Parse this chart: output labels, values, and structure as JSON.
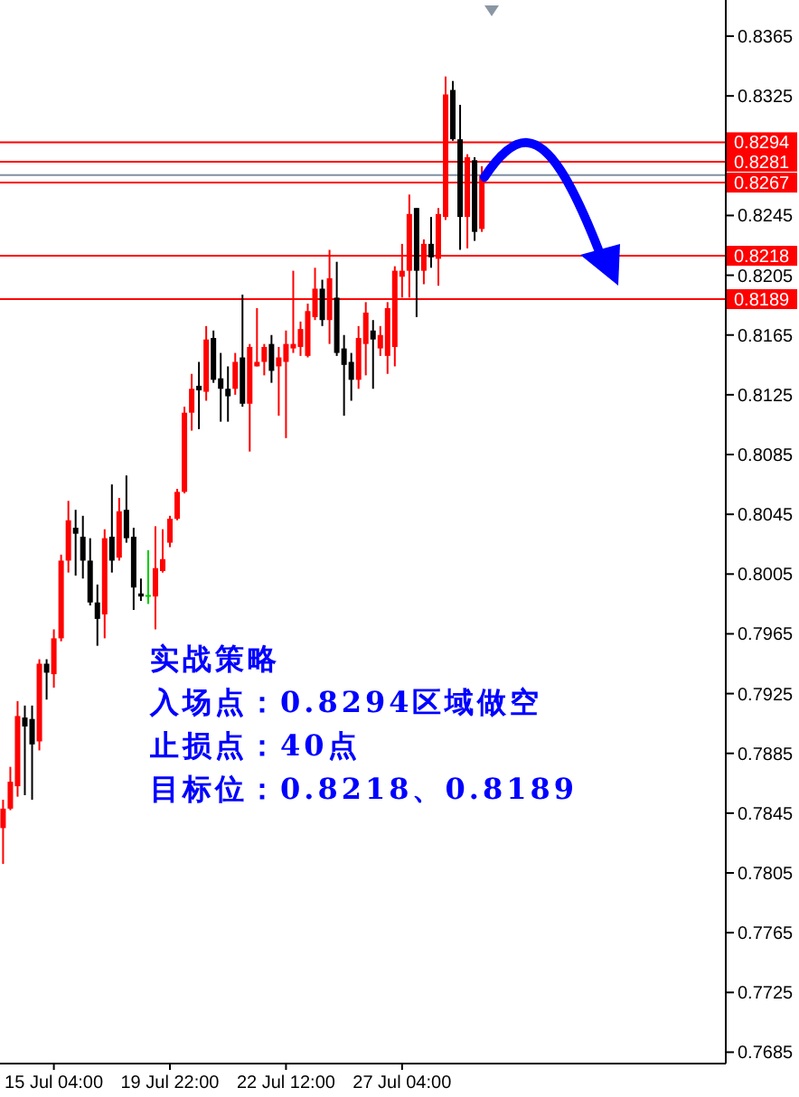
{
  "chart_data": {
    "type": "candlestick",
    "categories": [
      null,
      null,
      null,
      null,
      null,
      null,
      null,
      "15 Jul 04:00",
      null,
      null,
      null,
      null,
      null,
      null,
      null,
      null,
      null,
      null,
      null,
      null,
      null,
      null,
      null,
      "19 Jul 22:00",
      null,
      null,
      null,
      null,
      null,
      null,
      null,
      null,
      null,
      null,
      null,
      null,
      null,
      null,
      null,
      "22 Jul 12:00",
      null,
      null,
      null,
      null,
      null,
      null,
      null,
      null,
      null,
      null,
      null,
      null,
      null,
      null,
      null,
      "27 Jul 04:00",
      null,
      null,
      null,
      null,
      null,
      null,
      null,
      null,
      null,
      null,
      null,
      null,
      null,
      null,
      null,
      null,
      null,
      null,
      null,
      null,
      null,
      null,
      null,
      null,
      null,
      null,
      null,
      null,
      null,
      null,
      null,
      null,
      null,
      null,
      null,
      null,
      null,
      null,
      null,
      null,
      null,
      null,
      null,
      null
    ],
    "ohlc": [
      [
        0.7835,
        0.7854,
        0.7811,
        0.7848
      ],
      [
        0.7848,
        0.7876,
        0.7847,
        0.7866
      ],
      [
        0.7863,
        0.792,
        0.7856,
        0.791
      ],
      [
        0.7909,
        0.7917,
        0.7857,
        0.7903
      ],
      [
        0.7908,
        0.7917,
        0.7854,
        0.7891
      ],
      [
        0.7893,
        0.7948,
        0.7887,
        0.7945
      ],
      [
        0.7945,
        0.7948,
        0.7921,
        0.7939
      ],
      [
        0.7938,
        0.7968,
        0.7929,
        0.7962
      ],
      [
        0.7962,
        0.8018,
        0.796,
        0.8014
      ],
      [
        0.8014,
        0.8054,
        0.8006,
        0.8041
      ],
      [
        0.8036,
        0.8048,
        0.8004,
        0.8032
      ],
      [
        0.803,
        0.8044,
        0.8002,
        0.8014
      ],
      [
        0.8014,
        0.8029,
        0.7984,
        0.7986
      ],
      [
        0.7986,
        0.7998,
        0.7957,
        0.7975
      ],
      [
        0.7978,
        0.8035,
        0.7962,
        0.8029
      ],
      [
        0.803,
        0.8065,
        0.8006,
        0.8014
      ],
      [
        0.8016,
        0.8056,
        0.8014,
        0.8047
      ],
      [
        0.8048,
        0.8071,
        0.8026,
        0.8029
      ],
      [
        0.803,
        0.8036,
        0.7981,
        0.7996
      ],
      [
        0.7992,
        0.8002,
        0.7987,
        0.799
      ],
      [
        0.7991,
        0.8021,
        0.7985,
        0.7991
      ],
      [
        0.799,
        0.8037,
        0.7968,
        0.8009
      ],
      [
        0.8007,
        0.8035,
        0.8006,
        0.8015
      ],
      [
        0.8026,
        0.8044,
        0.8023,
        0.8042
      ],
      [
        0.8042,
        0.8062,
        0.8041,
        0.806
      ],
      [
        0.806,
        0.8117,
        0.8059,
        0.8113
      ],
      [
        0.8113,
        0.8139,
        0.8101,
        0.8129
      ],
      [
        0.8131,
        0.8147,
        0.8102,
        0.8128
      ],
      [
        0.8127,
        0.8171,
        0.8121,
        0.8162
      ],
      [
        0.8163,
        0.8168,
        0.8133,
        0.8135
      ],
      [
        0.8136,
        0.8153,
        0.8107,
        0.8129
      ],
      [
        0.8129,
        0.8144,
        0.8107,
        0.8124
      ],
      [
        0.8129,
        0.8153,
        0.8125,
        0.8147
      ],
      [
        0.815,
        0.8192,
        0.8117,
        0.8119
      ],
      [
        0.8119,
        0.8159,
        0.8087,
        0.8157
      ],
      [
        0.8144,
        0.8183,
        0.8144,
        0.8147
      ],
      [
        0.8147,
        0.8159,
        0.8138,
        0.8157
      ],
      [
        0.8159,
        0.8165,
        0.8133,
        0.8141
      ],
      [
        0.8144,
        0.8157,
        0.8111,
        0.815
      ],
      [
        0.8147,
        0.8168,
        0.8096,
        0.8159
      ],
      [
        0.8156,
        0.8208,
        0.8153,
        0.8159
      ],
      [
        0.8157,
        0.8174,
        0.8151,
        0.8169
      ],
      [
        0.8151,
        0.8186,
        0.815,
        0.8181
      ],
      [
        0.8177,
        0.821,
        0.8175,
        0.8196
      ],
      [
        0.8196,
        0.8202,
        0.8171,
        0.8175
      ],
      [
        0.8175,
        0.8222,
        0.8159,
        0.8203
      ],
      [
        0.819,
        0.8214,
        0.8151,
        0.8153
      ],
      [
        0.8156,
        0.8165,
        0.8111,
        0.8145
      ],
      [
        0.8147,
        0.8153,
        0.8121,
        0.8135
      ],
      [
        0.8135,
        0.8171,
        0.8129,
        0.8163
      ],
      [
        0.8159,
        0.8187,
        0.8138,
        0.818
      ],
      [
        0.8168,
        0.8175,
        0.8129,
        0.8162
      ],
      [
        0.8156,
        0.8171,
        0.8151,
        0.8165
      ],
      [
        0.8151,
        0.8187,
        0.8139,
        0.8183
      ],
      [
        0.8157,
        0.8211,
        0.8144,
        0.8208
      ],
      [
        0.8204,
        0.8226,
        0.819,
        0.8208
      ],
      [
        0.8208,
        0.8259,
        0.819,
        0.8246
      ],
      [
        0.825,
        0.825,
        0.8177,
        0.8208
      ],
      [
        0.8208,
        0.8229,
        0.8199,
        0.8226
      ],
      [
        0.8226,
        0.8244,
        0.821,
        0.8217
      ],
      [
        0.8216,
        0.825,
        0.8198,
        0.8246
      ],
      [
        0.8244,
        0.8338,
        0.8242,
        0.8326
      ],
      [
        0.8329,
        0.8335,
        0.8295,
        0.8296
      ],
      [
        0.8296,
        0.8319,
        0.8222,
        0.8244
      ],
      [
        0.8244,
        0.8286,
        0.8223,
        0.8284
      ],
      [
        0.8282,
        0.8284,
        0.8228,
        0.8234
      ],
      [
        0.8236,
        0.8278,
        0.8234,
        0.8272
      ],
      null,
      null,
      null,
      null,
      null,
      null,
      null,
      null,
      null,
      null,
      null,
      null,
      null,
      null,
      null,
      null,
      null,
      null,
      null,
      null,
      null,
      null,
      null,
      null,
      null,
      null,
      null,
      null,
      null,
      null,
      null,
      null,
      null
    ],
    "colors": [
      "#ff0000",
      "#ff0000",
      "#ff0000",
      "#000000",
      "#000000",
      "#ff0000",
      "#000000",
      "#ff0000",
      "#ff0000",
      "#ff0000",
      "#000000",
      "#000000",
      "#000000",
      "#000000",
      "#ff0000",
      "#000000",
      "#ff0000",
      "#000000",
      "#000000",
      "#000000",
      "#00cc00",
      "#ff0000",
      "#ff0000",
      "#ff0000",
      "#ff0000",
      "#ff0000",
      "#ff0000",
      "#000000",
      "#ff0000",
      "#000000",
      "#000000",
      "#000000",
      "#ff0000",
      "#000000",
      "#ff0000",
      "#ff0000",
      "#ff0000",
      "#000000",
      "#ff0000",
      "#ff0000",
      "#ff0000",
      "#ff0000",
      "#ff0000",
      "#ff0000",
      "#000000",
      "#ff0000",
      "#000000",
      "#000000",
      "#000000",
      "#ff0000",
      "#ff0000",
      "#000000",
      "#ff0000",
      "#ff0000",
      "#ff0000",
      "#ff0000",
      "#ff0000",
      "#000000",
      "#ff0000",
      "#000000",
      "#ff0000",
      "#ff0000",
      "#000000",
      "#000000",
      "#ff0000",
      "#000000",
      "#ff0000",
      null,
      null,
      null,
      null,
      null,
      null,
      null,
      null,
      null,
      null,
      null,
      null,
      null,
      null,
      null,
      null,
      null,
      null,
      null,
      null,
      null,
      null,
      null,
      null,
      null,
      null,
      null,
      null,
      null,
      null,
      null,
      null,
      null
    ],
    "ylim": [
      0.7678,
      0.8388
    ],
    "yticks": [
      0.8365,
      0.8325,
      0.8245,
      0.8205,
      0.8165,
      0.8125,
      0.8085,
      0.8045,
      0.8005,
      0.7965,
      0.7925,
      0.7885,
      0.7845,
      0.7805,
      0.7765,
      0.7725,
      0.7685
    ],
    "ref_lines": [
      {
        "axis": "y",
        "value": 0.8294,
        "label": "0.8294",
        "color": "#ff0000"
      },
      {
        "axis": "y",
        "value": 0.8281,
        "label": "0.8281",
        "color": "#ff0000"
      },
      {
        "axis": "y",
        "value": 0.8272,
        "label": null,
        "color": "#8090a0"
      },
      {
        "axis": "y",
        "value": 0.8267,
        "label": "0.8267",
        "color": "#ff0000"
      },
      {
        "axis": "y",
        "value": 0.8218,
        "label": "0.8218",
        "color": "#ff0000"
      },
      {
        "axis": "y",
        "value": 0.8189,
        "label": "0.8189",
        "color": "#ff0000"
      }
    ],
    "annotations": [
      "实战策略",
      "入场点：0.8294区域做空",
      "止损点：40点",
      "目标位：0.8218、0.8189"
    ]
  }
}
